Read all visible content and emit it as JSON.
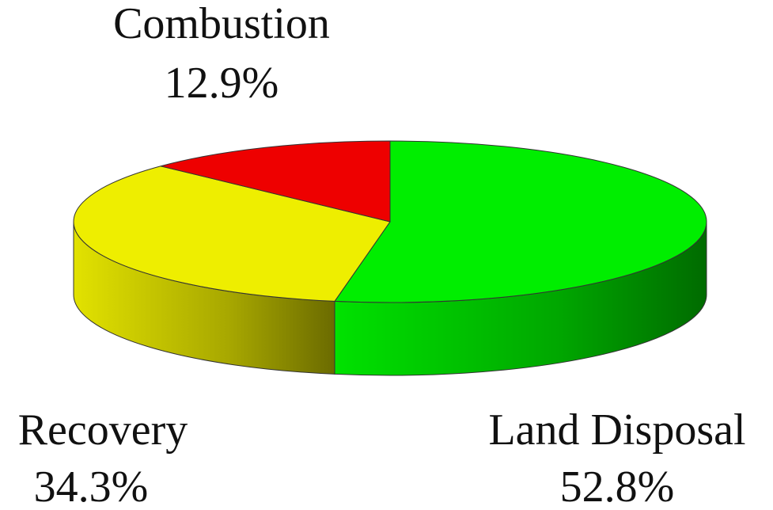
{
  "chart_data": {
    "type": "pie3d",
    "categories": [
      "Land Disposal",
      "Recovery",
      "Combustion"
    ],
    "values": [
      52.8,
      34.3,
      12.9
    ],
    "value_labels": [
      "52.8%",
      "34.3%",
      "12.9%"
    ],
    "colors": [
      "#00ee00",
      "#eeee00",
      "#ee0000"
    ]
  }
}
